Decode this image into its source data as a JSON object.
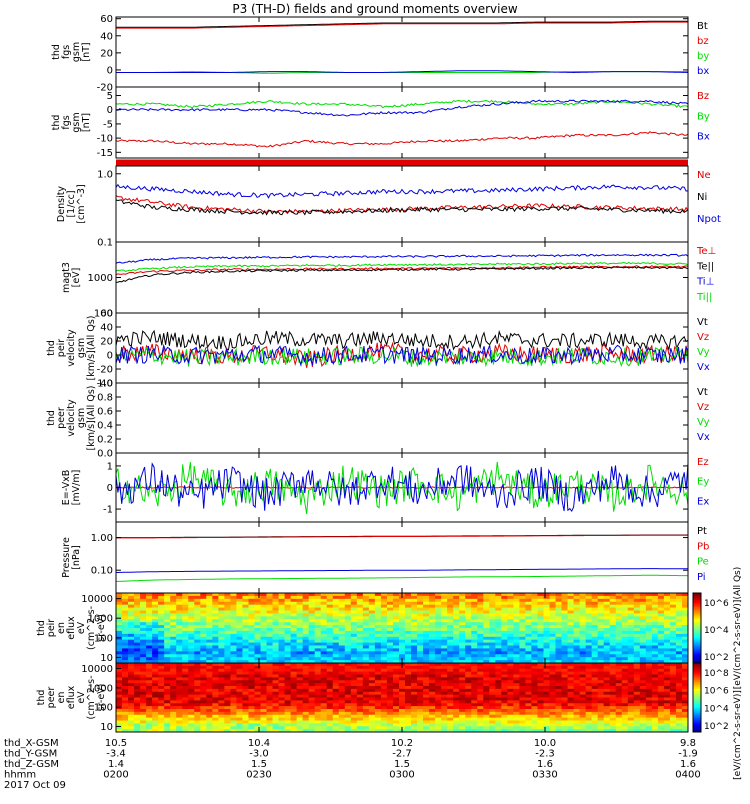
{
  "title": "P3 (TH-D) fields and ground moments overview",
  "colors": {
    "black": "#000000",
    "red": "#e00000",
    "green": "#00dd00",
    "blue": "#0000dd",
    "panel_border": "#000000"
  },
  "chart_data": [
    {
      "type": "line",
      "id": "fgs_gsm",
      "ylabel": [
        "thd",
        "fgs",
        "gsm",
        "[nT]"
      ],
      "yticks": [
        "60",
        "40",
        "20",
        "0",
        "-20"
      ],
      "ylim": [
        -20,
        62
      ],
      "series": [
        {
          "name": "Bt",
          "color": "black",
          "values": [
            50,
            50,
            50,
            51,
            52,
            53,
            54,
            55,
            55,
            55,
            55,
            56,
            56,
            56,
            57,
            57
          ]
        },
        {
          "name": "bz",
          "color": "red",
          "values": [
            49,
            49,
            49,
            50,
            51,
            52,
            53,
            54,
            54,
            54,
            54,
            55,
            55,
            55,
            56,
            56
          ]
        },
        {
          "name": "by",
          "color": "green",
          "values": [
            -3,
            -3,
            -2,
            -3,
            -4,
            -3,
            -3,
            -3,
            -3,
            -3,
            -3,
            -3,
            -2,
            -2,
            -2,
            -2
          ]
        },
        {
          "name": "bx",
          "color": "blue",
          "values": [
            -3,
            -3,
            -3,
            -3,
            -2,
            -2,
            -3,
            -3,
            -2,
            -1,
            -1,
            -2,
            -3,
            -2,
            -2,
            -3
          ]
        }
      ]
    },
    {
      "type": "line",
      "id": "fgs_gsm_zoom",
      "ylabel": [
        "thd",
        "fgs",
        "gsm",
        "[nT]"
      ],
      "yticks": [
        "5",
        "0",
        "-5",
        "-10",
        "-15"
      ],
      "ylim": [
        -17,
        8
      ],
      "series": [
        {
          "name": "Bz",
          "color": "red",
          "values": [
            -11,
            -11,
            -12,
            -12,
            -13,
            -11,
            -12,
            -12,
            -11,
            -11,
            -10,
            -10,
            -9,
            -9,
            -8,
            -9
          ]
        },
        {
          "name": "By",
          "color": "green",
          "values": [
            2,
            2,
            1,
            2,
            3,
            2,
            2,
            1,
            2,
            3,
            3,
            2,
            2,
            3,
            2,
            1
          ]
        },
        {
          "name": "Bx",
          "color": "blue",
          "values": [
            0,
            0,
            0,
            0,
            0,
            -1,
            -2,
            -1,
            -1,
            1,
            2,
            3,
            3,
            3,
            3,
            2
          ]
        }
      ]
    },
    {
      "type": "line",
      "id": "density",
      "yscale": "log",
      "ylabel": [
        "Density",
        "[1/cc]",
        "[cm^-3]"
      ],
      "yticks": [
        "1.0",
        "0.1"
      ],
      "ylim": [
        0.1,
        1.3
      ],
      "series": [
        {
          "name": "Ne",
          "color": "red",
          "values": [
            0.45,
            0.38,
            0.32,
            0.3,
            0.28,
            0.28,
            0.29,
            0.3,
            0.31,
            0.32,
            0.33,
            0.34,
            0.33,
            0.32,
            0.31,
            0.3
          ]
        },
        {
          "name": "Ni",
          "color": "black",
          "values": [
            0.4,
            0.32,
            0.3,
            0.28,
            0.27,
            0.27,
            0.28,
            0.29,
            0.3,
            0.3,
            0.3,
            0.31,
            0.31,
            0.3,
            0.29,
            0.28
          ]
        },
        {
          "name": "Npot",
          "color": "blue",
          "values": [
            0.65,
            0.6,
            0.55,
            0.5,
            0.48,
            0.5,
            0.52,
            0.55,
            0.55,
            0.56,
            0.57,
            0.6,
            0.62,
            0.65,
            0.63,
            0.6
          ]
        }
      ]
    },
    {
      "type": "line",
      "id": "temperature",
      "yscale": "log",
      "ylabel": [
        "magt3",
        "[eV]"
      ],
      "yticks": [
        "1000",
        "100"
      ],
      "ylim": [
        100,
        10000
      ],
      "series": [
        {
          "name": "Te⊥",
          "color": "red",
          "values": [
            1200,
            1500,
            1600,
            1700,
            1700,
            1750,
            1750,
            1800,
            1800,
            1850,
            1900,
            1950,
            2000,
            2000,
            2050,
            2000
          ]
        },
        {
          "name": "Te||",
          "color": "black",
          "values": [
            700,
            1200,
            1400,
            1500,
            1550,
            1600,
            1600,
            1650,
            1700,
            1700,
            1750,
            1800,
            1850,
            1900,
            1900,
            1850
          ]
        },
        {
          "name": "Ti⊥",
          "color": "blue",
          "values": [
            2500,
            3200,
            3500,
            3600,
            3700,
            3800,
            3800,
            3900,
            3900,
            4000,
            4000,
            4100,
            4200,
            4300,
            4300,
            4200
          ]
        },
        {
          "name": "Ti||",
          "color": "green",
          "values": [
            1500,
            1800,
            2000,
            2100,
            2100,
            2200,
            2200,
            2300,
            2300,
            2300,
            2400,
            2400,
            2500,
            2500,
            2500,
            2400
          ]
        }
      ]
    },
    {
      "type": "line",
      "id": "peir_velocity",
      "ylabel": [
        "thd",
        "peir",
        "velocity",
        "gsm",
        "[km/s](All Qs)"
      ],
      "yticks": [
        "60",
        "40",
        "20",
        "0",
        "-20",
        "-40"
      ],
      "ylim": [
        -40,
        60
      ],
      "series": [
        {
          "name": "Vt",
          "color": "black",
          "values": [
            22,
            25,
            20,
            18,
            24,
            22,
            20,
            25,
            20,
            19,
            23,
            21,
            20,
            22,
            18,
            20
          ]
        },
        {
          "name": "Vz",
          "color": "red",
          "values": [
            2,
            4,
            0,
            -2,
            3,
            -8,
            2,
            5,
            1,
            -1,
            3,
            0,
            1,
            2,
            0,
            1
          ]
        },
        {
          "name": "Vy",
          "color": "green",
          "values": [
            -2,
            0,
            -5,
            -4,
            -1,
            -3,
            -2,
            0,
            -5,
            -3,
            -2,
            -4,
            -1,
            -2,
            -3,
            0
          ]
        },
        {
          "name": "Vx",
          "color": "blue",
          "values": [
            0,
            1,
            -1,
            0,
            2,
            -2,
            0,
            1,
            -1,
            0,
            1,
            -2,
            0,
            1,
            -1,
            0
          ]
        }
      ]
    },
    {
      "type": "line",
      "id": "peer_velocity",
      "ylabel": [
        "thd",
        "peer",
        "velocity",
        "gsm",
        "[km/s](All Qs)"
      ],
      "yticks": [
        "1.0",
        "0.8",
        "0.6",
        "0.4",
        "0.2",
        "0.0"
      ],
      "ylim": [
        0,
        1
      ],
      "series": [
        {
          "name": "Vt",
          "color": "black",
          "values": []
        },
        {
          "name": "Vz",
          "color": "red",
          "values": []
        },
        {
          "name": "Vy",
          "color": "green",
          "values": []
        },
        {
          "name": "Vx",
          "color": "blue",
          "values": []
        }
      ]
    },
    {
      "type": "line",
      "id": "efield",
      "ylabel": [
        "E=-VxB",
        "[mV/m]"
      ],
      "yticks": [
        "1",
        "0",
        "-1"
      ],
      "ylim": [
        -1.6,
        1.6
      ],
      "series": [
        {
          "name": "Ez",
          "color": "red",
          "values": [
            0,
            0,
            0,
            0,
            0,
            0,
            0,
            0,
            0,
            0,
            0,
            0,
            0,
            0,
            0,
            0
          ]
        },
        {
          "name": "Ey",
          "color": "green",
          "values": [
            0.3,
            -0.4,
            0.5,
            -0.3,
            0.2,
            -0.5,
            0.4,
            -0.2,
            0.3,
            -0.4,
            0.5,
            -0.3,
            0.2,
            -0.4,
            0.3,
            -0.2
          ]
        },
        {
          "name": "Ex",
          "color": "blue",
          "values": [
            -0.2,
            0.4,
            -0.5,
            0.3,
            -0.4,
            0.5,
            -0.3,
            0.4,
            -0.2,
            0.5,
            -0.4,
            0.3,
            -0.5,
            0.4,
            -0.3,
            0.5
          ]
        }
      ]
    },
    {
      "type": "line",
      "id": "pressure",
      "yscale": "log",
      "ylabel": [
        "Pressure",
        "[nPa]"
      ],
      "yticks": [
        "1.00",
        "0.10"
      ],
      "ylim": [
        0.02,
        3
      ],
      "series": [
        {
          "name": "Pt",
          "color": "black",
          "values": [
            1.0,
            1.0,
            1.02,
            1.03,
            1.05,
            1.07,
            1.08,
            1.1,
            1.1,
            1.12,
            1.13,
            1.15,
            1.17,
            1.18,
            1.2,
            1.2
          ]
        },
        {
          "name": "Pb",
          "color": "red",
          "values": [
            0.98,
            0.98,
            1.0,
            1.01,
            1.03,
            1.05,
            1.06,
            1.08,
            1.08,
            1.1,
            1.11,
            1.13,
            1.15,
            1.16,
            1.18,
            1.18
          ]
        },
        {
          "name": "Pe",
          "color": "green",
          "values": [
            0.045,
            0.05,
            0.052,
            0.054,
            0.055,
            0.056,
            0.057,
            0.058,
            0.06,
            0.062,
            0.063,
            0.064,
            0.066,
            0.068,
            0.07,
            0.068
          ]
        },
        {
          "name": "Pi",
          "color": "blue",
          "values": [
            0.085,
            0.09,
            0.092,
            0.094,
            0.095,
            0.097,
            0.098,
            0.1,
            0.1,
            0.102,
            0.104,
            0.106,
            0.108,
            0.11,
            0.112,
            0.11
          ]
        }
      ]
    },
    {
      "type": "heatmap",
      "id": "peir_eflux",
      "ylabel": [
        "thd",
        "peir",
        "en",
        "eflux",
        "eV",
        "(cm^2-s-",
        "sr-eV)"
      ],
      "yticks": [
        "10000",
        "1000",
        "100",
        "10"
      ]
    },
    {
      "type": "heatmap",
      "id": "peer_eflux",
      "ylabel": [
        "thd",
        "peer",
        "en",
        "eflux",
        "eV",
        "(cm^2-s-",
        "sr-eV)"
      ],
      "yticks": [
        "10000",
        "1000",
        "100",
        "10"
      ]
    }
  ],
  "colorbar": {
    "label": "[eV/(cm^2-s-sr-eV)](All Qs)",
    "label2": "[eV/(cm^2-s-sr-eV)]",
    "ticks_top": [
      "10^6",
      "10^4",
      "10^2"
    ],
    "ticks_bottom": [
      "10^8",
      "10^6",
      "10^4",
      "10^2"
    ]
  },
  "x_axis": {
    "rows": [
      {
        "label": "thd_X-GSM",
        "values": [
          "10.5",
          "10.4",
          "10.2",
          "10.0",
          "9.8"
        ]
      },
      {
        "label": "thd_Y-GSM",
        "values": [
          "-3.4",
          "-3.0",
          "-2.7",
          "-2.3",
          "-1.9"
        ]
      },
      {
        "label": "thd_Z-GSM",
        "values": [
          "1.4",
          "1.5",
          "1.5",
          "1.6",
          "1.6"
        ]
      },
      {
        "label": "hhmm",
        "values": [
          "0200",
          "0230",
          "0300",
          "0330",
          "0400"
        ]
      }
    ],
    "date": "2017 Oct 09"
  }
}
